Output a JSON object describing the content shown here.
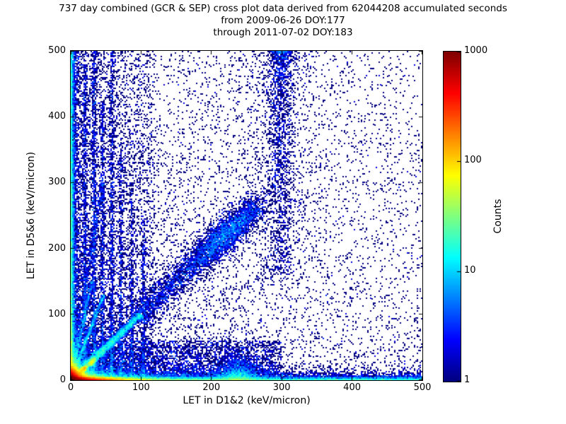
{
  "figure": {
    "background": "#ffffff",
    "title_lines": [
      "737 day combined (GCR & SEP) cross plot data derived from 62044208 accumulated seconds",
      "from 2009-06-26 DOY:177",
      "through 2011-07-02 DOY:183"
    ]
  },
  "chart_data": {
    "type": "heatmap",
    "title": "737 day combined (GCR & SEP) cross plot data derived from 62044208 accumulated seconds from 2009-06-26 DOY:177 through 2011-07-02 DOY:183",
    "xlabel": "LET in D1&2 (keV/micron)",
    "ylabel": "LET in D5&6 (keV/micron)",
    "xlim": [
      0,
      500
    ],
    "ylim": [
      0,
      500
    ],
    "xticks": [
      0,
      100,
      200,
      300,
      400,
      500
    ],
    "yticks": [
      0,
      100,
      200,
      300,
      400,
      500
    ],
    "grid": false,
    "colormap": "jet",
    "color_scale": "log",
    "point_bin_size_kev": 2,
    "colorbar": {
      "label": "Counts",
      "ticks": [
        1,
        10,
        100,
        1000
      ],
      "vmin": 1,
      "vmax": 1000,
      "low_color": "#00007f",
      "high_color": "#7f0000"
    },
    "bins": 250,
    "seed": 42,
    "features": [
      {
        "name": "origin-hot-core",
        "type": "xy",
        "n": 30000,
        "x": {
          "dist": "exp",
          "scale": 7
        },
        "y": {
          "dist": "exp",
          "scale": 6
        }
      },
      {
        "name": "bottom-edge-hot-band",
        "type": "xy",
        "n": 22000,
        "x": {
          "dist": "exp",
          "scale": 28
        },
        "y": {
          "dist": "exp",
          "scale": 2.2
        }
      },
      {
        "name": "bottom-edge-far-line",
        "type": "xy",
        "n": 3500,
        "x": {
          "dist": "uni",
          "a": 0,
          "b": 500
        },
        "y": {
          "dist": "exp",
          "scale": 1.5
        }
      },
      {
        "name": "bottom-second-band",
        "type": "xy",
        "n": 9000,
        "x": {
          "dist": "pow",
          "max": 500,
          "p": 2.2
        },
        "y": {
          "dist": "exp",
          "scale": 4.5
        }
      },
      {
        "name": "left-edge-band",
        "type": "xy",
        "n": 9000,
        "x": {
          "dist": "exp",
          "scale": 2.2
        },
        "y": {
          "dist": "pow",
          "max": 500,
          "p": 1.7
        }
      },
      {
        "name": "proton-diagonal-ridge",
        "type": "diag",
        "n": 5000,
        "s": {
          "dist": "pow",
          "max": 100,
          "p": 1.4
        },
        "across": 2.2
      },
      {
        "name": "ridge-knot-low",
        "type": "diagnorm",
        "n": 900,
        "cx": 19,
        "cy": 17,
        "along": 2.2,
        "across": 1.2
      },
      {
        "name": "ridge-knot-mid",
        "type": "diagnorm",
        "n": 700,
        "cx": 30,
        "cy": 27,
        "along": 2.5,
        "across": 1.4
      },
      {
        "name": "stopping-track-fan-a",
        "type": "slope",
        "n": 1200,
        "y": {
          "dist": "pow",
          "max": 130,
          "p": 1.1
        },
        "x0": 0,
        "invslope": 0.36,
        "sigma": 1.5
      },
      {
        "name": "stopping-track-fan-b",
        "type": "slope",
        "n": 900,
        "y": {
          "dist": "pow",
          "max": 150,
          "p": 1.2
        },
        "x0": 0,
        "invslope": 0.2,
        "sigma": 1.4
      },
      {
        "name": "stopping-track-fan-c",
        "type": "slope",
        "n": 700,
        "y": {
          "dist": "pow",
          "max": 300,
          "p": 1.3
        },
        "x0": 0,
        "invslope": 0.15,
        "sigma": 2
      },
      {
        "name": "vertical-streak-x20",
        "type": "slope",
        "n": 1000,
        "y": {
          "dist": "pow",
          "max": 480,
          "p": 1.8
        },
        "x0": 20,
        "invslope": 0,
        "sigma": 1.5
      },
      {
        "name": "vertical-streak-x33",
        "type": "slope",
        "n": 1300,
        "y": {
          "dist": "pow",
          "max": 500,
          "p": 1.8
        },
        "x0": 33,
        "invslope": 0,
        "sigma": 1.7
      },
      {
        "name": "vertical-streak-x45",
        "type": "slope",
        "n": 800,
        "y": {
          "dist": "pow",
          "max": 430,
          "p": 1.8
        },
        "x0": 45,
        "invslope": 0,
        "sigma": 1.5
      },
      {
        "name": "vertical-streak-x58",
        "type": "slope",
        "n": 1000,
        "y": {
          "dist": "pow",
          "max": 500,
          "p": 1.9
        },
        "x0": 58,
        "invslope": 0,
        "sigma": 1.7
      },
      {
        "name": "vertical-streak-x71",
        "type": "slope",
        "n": 600,
        "y": {
          "dist": "pow",
          "max": 360,
          "p": 1.8
        },
        "x0": 71,
        "invslope": 0,
        "sigma": 1.5
      },
      {
        "name": "vertical-streak-x87",
        "type": "slope",
        "n": 450,
        "y": {
          "dist": "pow",
          "max": 300,
          "p": 1.7
        },
        "x0": 87,
        "invslope": 0,
        "sigma": 1.6
      },
      {
        "name": "vertical-streak-x104",
        "type": "slope",
        "n": 400,
        "y": {
          "dist": "pow",
          "max": 250,
          "p": 1.6
        },
        "x0": 104,
        "invslope": 0,
        "sigma": 1.8
      },
      {
        "name": "heavy-ion-diagonal-cloud",
        "type": "diag",
        "n": 2600,
        "s": {
          "dist": "uni",
          "a": 95,
          "b": 265
        },
        "across": 7
      },
      {
        "name": "iron-peak-cluster",
        "type": "diagnorm",
        "n": 2300,
        "cx": 220,
        "cy": 221,
        "along": 24,
        "across": 8
      },
      {
        "name": "bottom-mound-x237",
        "type": "xy",
        "n": 2200,
        "x": {
          "dist": "norm",
          "mu": 237,
          "sigma": 16
        },
        "y": {
          "dist": "exp",
          "scale": 12
        }
      },
      {
        "name": "upper-band-x300",
        "type": "xy",
        "n": 1500,
        "x": {
          "dist": "norm",
          "mu": 299,
          "sigma": 9
        },
        "y": {
          "dist": "powtop",
          "max": 500,
          "range": 340,
          "p": 1.6
        }
      },
      {
        "name": "upper-band-halo",
        "type": "xy",
        "n": 800,
        "x": {
          "dist": "norm",
          "mu": 295,
          "sigma": 28
        },
        "y": {
          "dist": "powtop",
          "max": 500,
          "range": 360,
          "p": 1.2
        }
      },
      {
        "name": "background-left-weighted",
        "type": "xy",
        "n": 7000,
        "x": {
          "dist": "pow",
          "max": 500,
          "p": 2.1
        },
        "y": {
          "dist": "pow",
          "max": 500,
          "p": 1.5
        }
      },
      {
        "name": "background-uniform",
        "type": "xy",
        "n": 1700,
        "x": {
          "dist": "uni",
          "a": 0,
          "b": 500
        },
        "y": {
          "dist": "uni",
          "a": 0,
          "b": 500
        }
      },
      {
        "name": "left-region-scatter",
        "type": "xy",
        "n": 4000,
        "x": {
          "dist": "pow",
          "max": 120,
          "p": 1.6
        },
        "y": {
          "dist": "pow",
          "max": 500,
          "p": 1.2
        }
      },
      {
        "name": "low-region-scatter",
        "type": "xy",
        "n": 5000,
        "x": {
          "dist": "pow",
          "max": 300,
          "p": 1.3
        },
        "y": {
          "dist": "pow",
          "max": 60,
          "p": 1.5
        }
      }
    ]
  }
}
